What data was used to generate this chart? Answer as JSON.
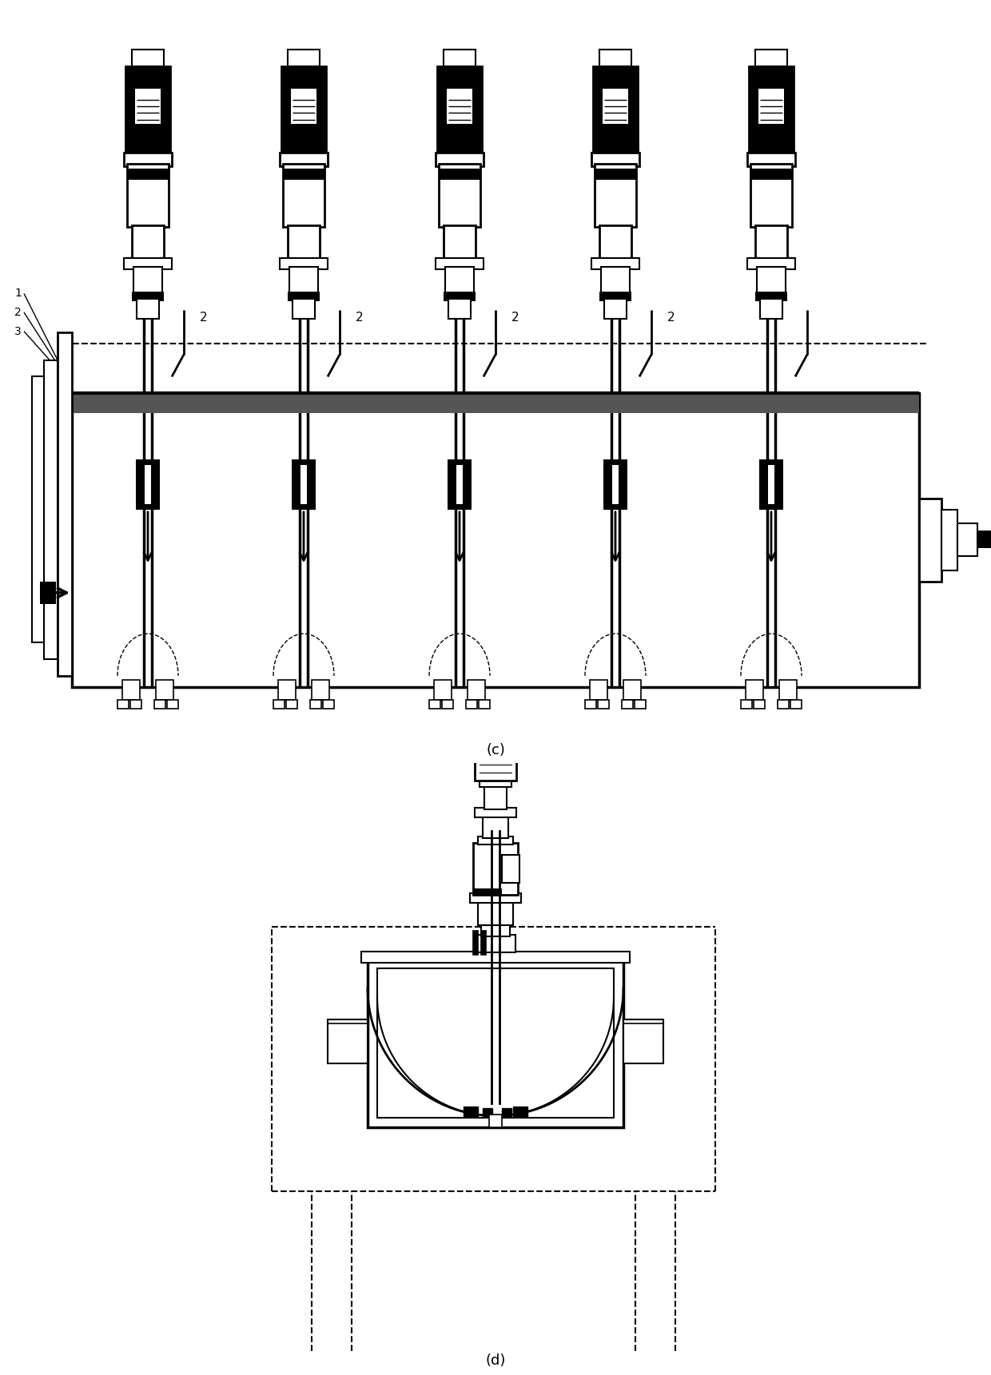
{
  "fig_width": 12.4,
  "fig_height": 17.21,
  "dpi": 100,
  "bg_color": "#ffffff",
  "line_color": "#000000",
  "label_c": "(c)",
  "label_d": "(d)",
  "label_fontsize": 13
}
